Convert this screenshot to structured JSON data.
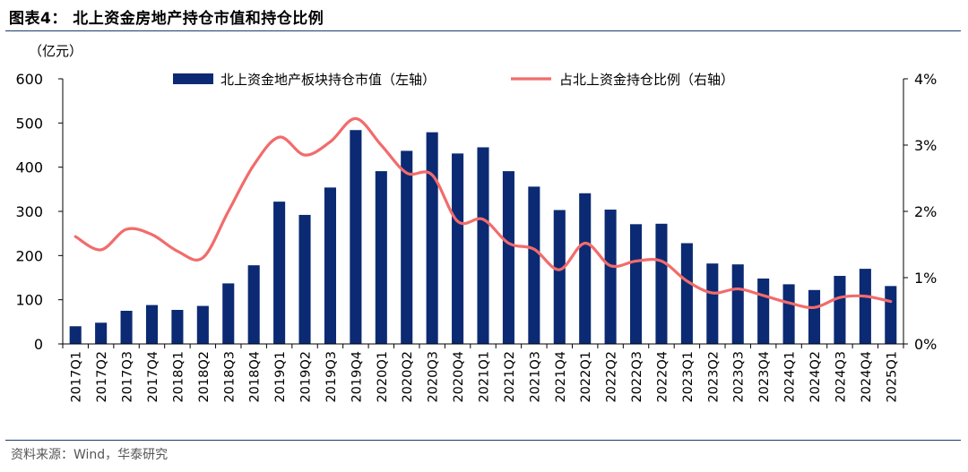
{
  "header": {
    "title": "图表4： 北上资金房地产持仓市值和持仓比例"
  },
  "footer": {
    "source": "资料来源：Wind，华泰研究"
  },
  "colors": {
    "bar": "#0b2a73",
    "line": "#f26b6b",
    "rule": "#1f3a6e",
    "axis": "#000000"
  },
  "chart_data": {
    "type": "bar",
    "categories": [
      "2017Q1",
      "2017Q2",
      "2017Q3",
      "2017Q4",
      "2018Q1",
      "2018Q2",
      "2018Q3",
      "2018Q4",
      "2019Q1",
      "2019Q2",
      "2019Q3",
      "2019Q4",
      "2020Q1",
      "2020Q2",
      "2020Q3",
      "2020Q4",
      "2021Q1",
      "2021Q2",
      "2021Q3",
      "2021Q4",
      "2022Q1",
      "2022Q2",
      "2022Q3",
      "2022Q4",
      "2023Q1",
      "2023Q2",
      "2023Q3",
      "2023Q4",
      "2024Q1",
      "2024Q2",
      "2024Q3",
      "2024Q4",
      "2025Q1"
    ],
    "y_unit": "（亿元）",
    "ylim_left": [
      0,
      600
    ],
    "yticks_left": [
      "0",
      "100",
      "200",
      "300",
      "400",
      "500",
      "600"
    ],
    "ylim_right": [
      0,
      4
    ],
    "yticks_right": [
      "0%",
      "1%",
      "2%",
      "3%",
      "4%"
    ],
    "legend_position": "top",
    "series": [
      {
        "name": "北上资金地产板块持仓市值（左轴）",
        "kind": "bar",
        "axis": "left",
        "values": [
          40,
          48,
          75,
          88,
          77,
          86,
          137,
          178,
          322,
          292,
          354,
          484,
          391,
          437,
          479,
          431,
          445,
          391,
          356,
          303,
          341,
          304,
          271,
          272,
          228,
          182,
          180,
          148,
          135,
          122,
          154,
          170,
          131
        ]
      },
      {
        "name": "占北上资金持仓比例（右轴）",
        "kind": "line",
        "axis": "right",
        "values": [
          1.62,
          1.42,
          1.73,
          1.65,
          1.4,
          1.3,
          2.0,
          2.7,
          3.12,
          2.85,
          3.05,
          3.4,
          3.0,
          2.58,
          2.55,
          1.85,
          1.88,
          1.52,
          1.43,
          1.12,
          1.52,
          1.18,
          1.25,
          1.25,
          0.95,
          0.77,
          0.83,
          0.73,
          0.62,
          0.55,
          0.7,
          0.72,
          0.64
        ]
      }
    ]
  }
}
